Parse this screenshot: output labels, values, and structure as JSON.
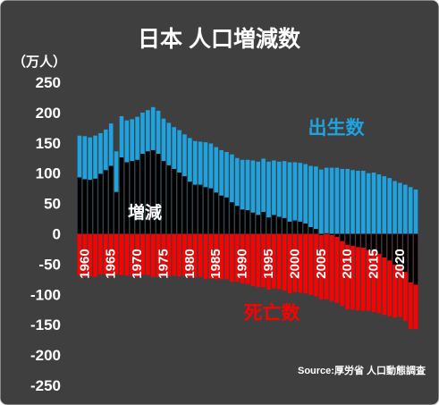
{
  "chart_data": {
    "type": "bar",
    "title": "日本 人口増減数",
    "unit_label": "（万人）",
    "source": "Source:厚労省 人口動態調査",
    "ylim": [
      -250,
      250
    ],
    "y_ticks": [
      250,
      200,
      150,
      100,
      50,
      0,
      -50,
      -100,
      -150,
      -200,
      -250
    ],
    "x_tick_labels": [
      "1960",
      "1965",
      "1970",
      "1975",
      "1980",
      "1985",
      "1990",
      "1995",
      "2000",
      "2005",
      "2010",
      "2015",
      "2020"
    ],
    "x_start": 1959,
    "x_end": 2022,
    "colors": {
      "births": "#1fa3e0",
      "deaths": "#ff0000",
      "change": "#000000",
      "background": "#3f3f3f"
    },
    "series": [
      {
        "name": "出生数",
        "values": [
          162,
          161,
          159,
          162,
          166,
          172,
          182,
          136,
          194,
          187,
          189,
          193,
          200,
          204,
          209,
          203,
          190,
          183,
          176,
          171,
          164,
          158,
          153,
          152,
          151,
          149,
          143,
          138,
          135,
          131,
          125,
          122,
          122,
          121,
          119,
          124,
          119,
          121,
          119,
          120,
          118,
          118,
          117,
          115,
          112,
          111,
          106,
          109,
          109,
          109,
          107,
          107,
          105,
          104,
          104,
          100,
          101,
          98,
          95,
          92,
          87,
          84,
          81,
          77,
          73
        ]
      },
      {
        "name": "死亡数",
        "values": [
          -69,
          -71,
          -70,
          -71,
          -67,
          -67,
          -70,
          -67,
          -68,
          -69,
          -69,
          -71,
          -68,
          -68,
          -71,
          -71,
          -70,
          -70,
          -69,
          -70,
          -69,
          -72,
          -72,
          -71,
          -74,
          -74,
          -75,
          -75,
          -75,
          -79,
          -79,
          -82,
          -83,
          -86,
          -88,
          -88,
          -92,
          -90,
          -91,
          -94,
          -98,
          -96,
          -97,
          -98,
          -101,
          -103,
          -108,
          -108,
          -111,
          -114,
          -119,
          -125,
          -125,
          -126,
          -127,
          -127,
          -129,
          -131,
          -134,
          -136,
          -138,
          -137,
          -144,
          -157,
          -157
        ]
      },
      {
        "name": "増減",
        "values": [
          93,
          90,
          89,
          91,
          99,
          105,
          112,
          69,
          126,
          118,
          120,
          122,
          132,
          136,
          138,
          132,
          120,
          113,
          107,
          101,
          95,
          86,
          81,
          81,
          77,
          75,
          68,
          63,
          60,
          52,
          46,
          40,
          39,
          35,
          31,
          36,
          27,
          31,
          28,
          26,
          20,
          22,
          20,
          17,
          11,
          8,
          -2,
          1,
          -2,
          -5,
          -12,
          -18,
          -20,
          -22,
          -23,
          -27,
          -28,
          -33,
          -39,
          -44,
          -51,
          -53,
          -63,
          -80,
          -84
        ]
      }
    ],
    "labels": {
      "births": "出生数",
      "change": "増減",
      "deaths": "死亡数"
    }
  }
}
